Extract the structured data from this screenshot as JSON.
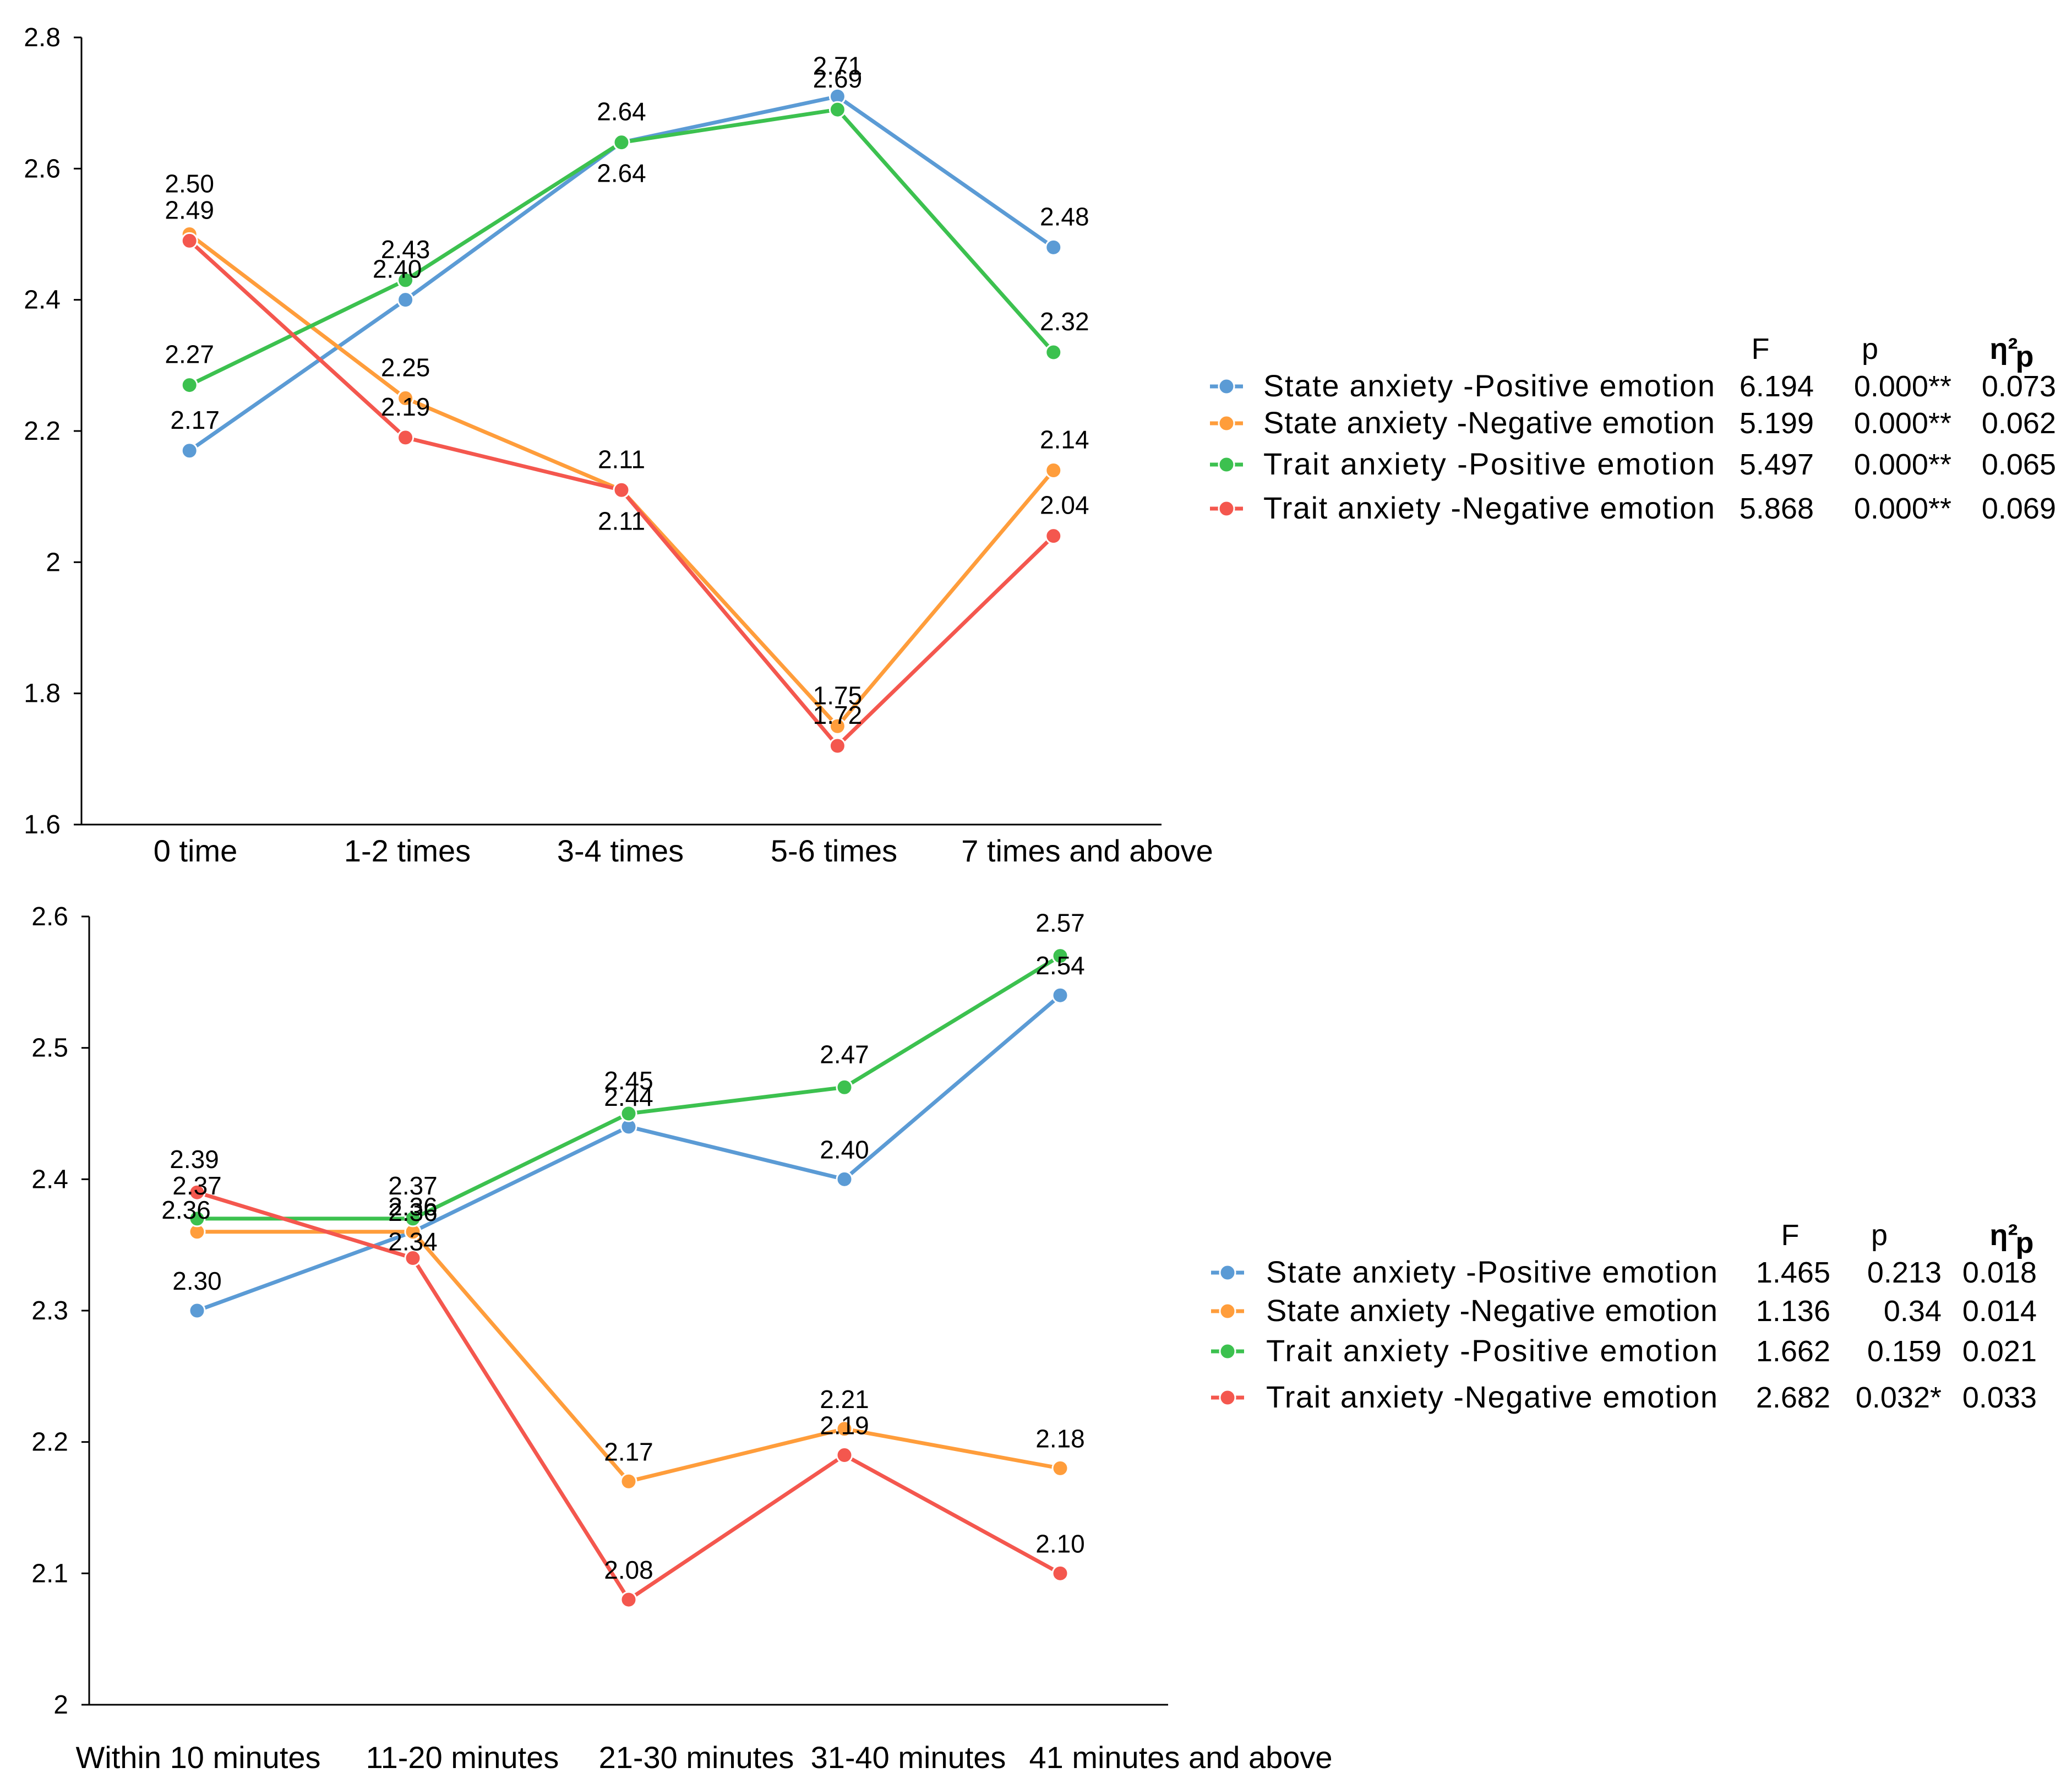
{
  "figure_title": "",
  "chart_data": [
    {
      "type": "line",
      "title": "",
      "xlabel": "",
      "ylabel": "",
      "ylim": [
        1.6,
        2.8
      ],
      "yticks": [
        "1.6",
        "1.8",
        "2",
        "2.2",
        "2.4",
        "2.6",
        "2.8"
      ],
      "ytick_values": [
        1.6,
        1.8,
        2.0,
        2.2,
        2.4,
        2.6,
        2.8
      ],
      "categories": [
        "0 time",
        "1-2 times",
        "3-4 times",
        "5-6 times",
        "7 times and above"
      ],
      "grid": false,
      "legend_position": "right",
      "series": [
        {
          "name": "State anxiety -Positive emotion",
          "color": "#5b9bd5",
          "values": [
            2.17,
            2.4,
            2.64,
            2.71,
            2.48
          ],
          "labels": [
            "2.17",
            "2.40",
            "2.64",
            "2.71",
            "2.48"
          ],
          "F": "6.194",
          "p": "0.000**",
          "eta": "0.073"
        },
        {
          "name": "State anxiety -Negative emotion",
          "color": "#ff9d3b",
          "values": [
            2.5,
            2.25,
            2.11,
            1.75,
            2.14
          ],
          "labels": [
            "2.50",
            "2.25",
            "2.11",
            "1.75",
            "2.14"
          ],
          "F": "5.199",
          "p": "0.000**",
          "eta": "0.062"
        },
        {
          "name": "Trait anxiety -Positive emotion",
          "color": "#3cc14f",
          "values": [
            2.27,
            2.43,
            2.64,
            2.69,
            2.32
          ],
          "labels": [
            "2.27",
            "2.43",
            "2.64",
            "2.69",
            "2.32"
          ],
          "F": "5.497",
          "p": "0.000**",
          "eta": "0.065"
        },
        {
          "name": "Trait anxiety -Negative emotion",
          "color": "#f4574e",
          "values": [
            2.49,
            2.19,
            2.11,
            1.72,
            2.04
          ],
          "labels": [
            "2.49",
            "2.19",
            "2.11",
            "1.72",
            "2.04"
          ],
          "F": "5.868",
          "p": "0.000**",
          "eta": "0.069"
        }
      ],
      "stat_headers": {
        "F": "F",
        "p": "p",
        "eta": "η²",
        "eta_sub": "p"
      }
    },
    {
      "type": "line",
      "title": "",
      "xlabel": "",
      "ylabel": "",
      "ylim": [
        2.0,
        2.6
      ],
      "yticks": [
        "2",
        "2.1",
        "2.2",
        "2.3",
        "2.4",
        "2.5",
        "2.6"
      ],
      "ytick_values": [
        2.0,
        2.1,
        2.2,
        2.3,
        2.4,
        2.5,
        2.6
      ],
      "categories": [
        "Within 10 minutes",
        "11-20 minutes",
        "21-30 minutes",
        "31-40 minutes",
        "41 minutes and above"
      ],
      "grid": false,
      "legend_position": "right",
      "series": [
        {
          "name": "State anxiety -Positive emotion",
          "color": "#5b9bd5",
          "values": [
            2.3,
            2.36,
            2.44,
            2.4,
            2.54
          ],
          "labels": [
            "2.30",
            "2.36",
            "2.44",
            "2.40",
            "2.54"
          ],
          "F": "1.465",
          "p": "0.213",
          "eta": "0.018"
        },
        {
          "name": "State anxiety -Negative emotion",
          "color": "#ff9d3b",
          "values": [
            2.36,
            2.36,
            2.17,
            2.21,
            2.18
          ],
          "labels": [
            "2.36",
            "2.36",
            "2.17",
            "2.21",
            "2.18"
          ],
          "F": "1.136",
          "p": "0.34",
          "eta": "0.014"
        },
        {
          "name": "Trait anxiety -Positive emotion",
          "color": "#3cc14f",
          "values": [
            2.37,
            2.37,
            2.45,
            2.47,
            2.57
          ],
          "labels": [
            "2.37",
            "2.37",
            "2.45",
            "2.47",
            "2.57"
          ],
          "F": "1.662",
          "p": "0.159",
          "eta": "0.021"
        },
        {
          "name": "Trait anxiety -Negative emotion",
          "color": "#f4574e",
          "values": [
            2.39,
            2.34,
            2.08,
            2.19,
            2.1
          ],
          "labels": [
            "2.39",
            "2.34",
            "2.08",
            "2.19",
            "2.10"
          ],
          "F": "2.682",
          "p": "0.032*",
          "eta": "0.033"
        }
      ],
      "stat_headers": {
        "F": "F",
        "p": "p",
        "eta": "η²",
        "eta_sub": "p"
      }
    }
  ]
}
